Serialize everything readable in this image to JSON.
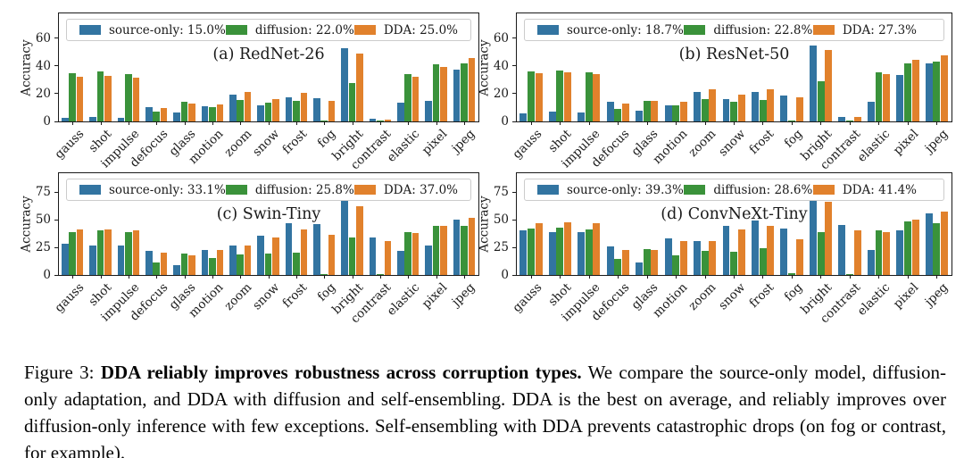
{
  "figure": {
    "caption_prefix": "Figure 3: ",
    "caption_bold": "DDA reliably improves robustness across corruption types.",
    "caption_rest": " We compare the source-only model, diffusion-only adaptation, and DDA with diffusion and self-ensembling. DDA is the best on average, and reliably improves over diffusion-only inference with few exceptions. Self-ensembling with DDA prevents catastrophic drops (on fog or contrast, for example)."
  },
  "colors": {
    "series": [
      "#3274A1",
      "#3A923A",
      "#E1812C"
    ],
    "spine": "#1a1a1a",
    "legend_border": "#cccccc"
  },
  "chart_data": [
    {
      "type": "bar",
      "title": "(a) RedNet-26",
      "ylabel": "Accuracy",
      "categories": [
        "gauss",
        "shot",
        "impulse",
        "defocus",
        "glass",
        "motion",
        "zoom",
        "snow",
        "frost",
        "fog",
        "bright",
        "contrast",
        "elastic",
        "pixel",
        "jpeg"
      ],
      "yticks": [
        0,
        20,
        40,
        60
      ],
      "ylim": [
        0,
        78
      ],
      "grid": false,
      "legend_position": "top",
      "legend": [
        "source-only: 15.0%",
        "diffusion: 22.0%",
        "DDA: 25.0%"
      ],
      "series": [
        {
          "name": "source-only",
          "values": [
            2.5,
            3,
            2.5,
            10,
            6.5,
            11,
            19.5,
            11.5,
            17.5,
            16.5,
            53,
            2,
            13.5,
            15,
            37.5
          ]
        },
        {
          "name": "diffusion",
          "values": [
            35,
            36,
            34,
            7,
            14,
            10.5,
            15.5,
            13.5,
            15,
            0.5,
            28,
            0.2,
            34,
            41,
            42
          ]
        },
        {
          "name": "DDA",
          "values": [
            32,
            33,
            31.5,
            9.5,
            13,
            12.5,
            21,
            16,
            20.5,
            15,
            49,
            1.5,
            32.5,
            39.5,
            45.5
          ]
        }
      ]
    },
    {
      "type": "bar",
      "title": "(b) ResNet-50",
      "ylabel": "Accuracy",
      "categories": [
        "gauss",
        "shot",
        "impulse",
        "defocus",
        "glass",
        "motion",
        "zoom",
        "snow",
        "frost",
        "fog",
        "bright",
        "contrast",
        "elastic",
        "pixel",
        "jpeg"
      ],
      "yticks": [
        0,
        20,
        40,
        60
      ],
      "ylim": [
        0,
        78
      ],
      "grid": false,
      "legend_position": "top",
      "legend": [
        "source-only: 18.7%",
        "diffusion: 22.8%",
        "DDA: 27.3%"
      ],
      "series": [
        {
          "name": "source-only",
          "values": [
            6,
            7,
            6.5,
            14.5,
            7.5,
            11.5,
            21.5,
            16,
            21.5,
            19,
            55,
            3.5,
            14.5,
            33.5,
            42
          ]
        },
        {
          "name": "diffusion",
          "values": [
            36,
            37,
            35.5,
            9,
            15,
            11.5,
            16,
            14.5,
            15.5,
            0.5,
            29,
            0.3,
            35.5,
            42,
            43
          ]
        },
        {
          "name": "DDA",
          "values": [
            35,
            35.5,
            34,
            13,
            15,
            14,
            23,
            19.5,
            23.5,
            17.5,
            51.5,
            3,
            34,
            44.5,
            48
          ]
        }
      ]
    },
    {
      "type": "bar",
      "title": "(c) Swin-Tiny",
      "ylabel": "Accuracy",
      "categories": [
        "gauss",
        "shot",
        "impulse",
        "defocus",
        "glass",
        "motion",
        "zoom",
        "snow",
        "frost",
        "fog",
        "bright",
        "contrast",
        "elastic",
        "pixel",
        "jpeg"
      ],
      "yticks": [
        0,
        25,
        50,
        75
      ],
      "ylim": [
        0,
        92
      ],
      "grid": false,
      "legend_position": "top",
      "legend": [
        "source-only: 33.1%",
        "diffusion: 25.8%",
        "DDA: 37.0%"
      ],
      "series": [
        {
          "name": "source-only",
          "values": [
            28,
            27,
            27,
            22,
            8.5,
            23,
            27,
            35.5,
            46.5,
            46,
            67.5,
            33.5,
            22,
            26.5,
            50
          ]
        },
        {
          "name": "diffusion",
          "values": [
            39,
            40,
            38.5,
            11.5,
            19.5,
            15,
            18.5,
            19,
            20,
            1,
            34,
            0.5,
            39,
            44.5,
            44.5
          ]
        },
        {
          "name": "DDA",
          "values": [
            41,
            41.5,
            40.5,
            20,
            18,
            22.5,
            27,
            34,
            41,
            36.5,
            62.5,
            30.5,
            38,
            44.5,
            51.5
          ]
        }
      ]
    },
    {
      "type": "bar",
      "title": "(d) ConvNeXt-Tiny",
      "ylabel": "Accuracy",
      "categories": [
        "gauss",
        "shot",
        "impulse",
        "defocus",
        "glass",
        "motion",
        "zoom",
        "snow",
        "frost",
        "fog",
        "bright",
        "contrast",
        "elastic",
        "pixel",
        "jpeg"
      ],
      "yticks": [
        0,
        25,
        50,
        75
      ],
      "ylim": [
        0,
        92
      ],
      "grid": false,
      "legend_position": "top",
      "legend": [
        "source-only: 39.3%",
        "diffusion: 28.6%",
        "DDA: 41.4%"
      ],
      "series": [
        {
          "name": "source-only",
          "values": [
            40,
            39,
            38.5,
            25.5,
            11,
            33,
            31,
            44,
            49.5,
            42,
            71,
            45,
            22.5,
            40,
            56
          ]
        },
        {
          "name": "diffusion",
          "values": [
            42,
            43,
            41.5,
            14.5,
            23.5,
            18,
            22,
            21,
            24,
            1.5,
            38.5,
            0.5,
            40.5,
            48.5,
            47
          ]
        },
        {
          "name": "DDA",
          "values": [
            47,
            47.5,
            46.5,
            23,
            22.5,
            30.5,
            31,
            41,
            44.5,
            32.5,
            66,
            40.5,
            39,
            50,
            57
          ]
        }
      ]
    }
  ]
}
